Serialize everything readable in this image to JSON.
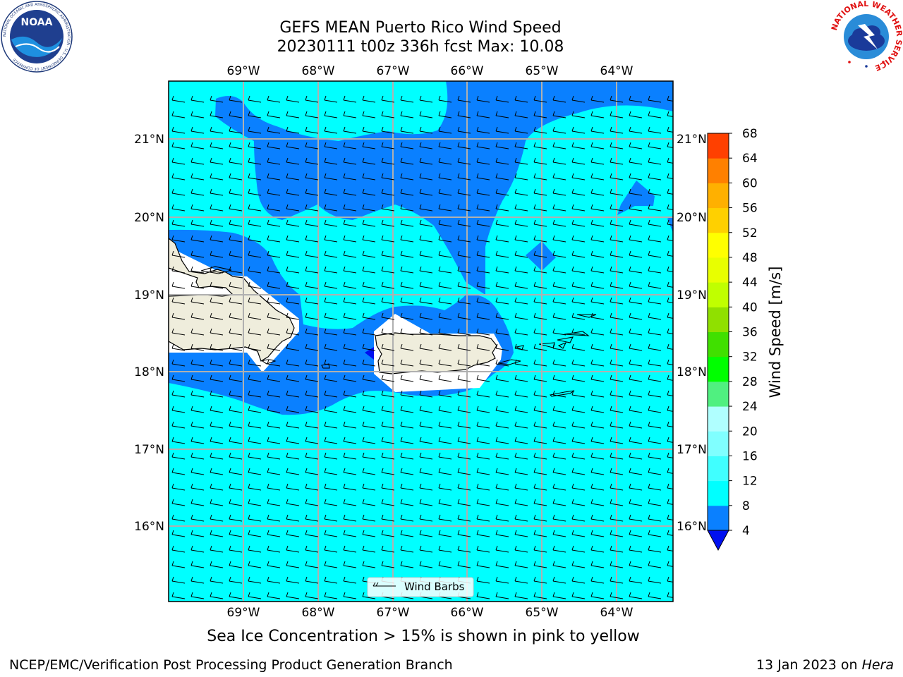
{
  "header": {
    "title_line1": "GEFS MEAN Puerto Rico Wind Speed",
    "title_line2": "20230111 t00z 336h fcst   Max: 10.08"
  },
  "logos": {
    "left": "NOAA",
    "left_ring_text": "NATIONAL OCEANIC AND ATMOSPHERIC ADMINISTRATION · U.S. DEPARTMENT OF COMMERCE",
    "right_ring_text": "NATIONAL WEATHER SERVICE"
  },
  "map": {
    "lon_labels": [
      "69°W",
      "68°W",
      "67°W",
      "66°W",
      "65°W",
      "64°W"
    ],
    "lat_labels": [
      "21°N",
      "20°N",
      "19°N",
      "18°N",
      "17°N",
      "16°N"
    ],
    "legend_label": "Wind Barbs",
    "colors": {
      "land": "#efeddc",
      "cyan": "#00ffff",
      "blue": "#0a80ff",
      "deep_blue": "#0010f0",
      "grid": "#b0b0b0"
    }
  },
  "colorbar": {
    "label": "Wind Speed [m/s]",
    "ticks": [
      "4",
      "8",
      "12",
      "16",
      "20",
      "24",
      "28",
      "32",
      "36",
      "40",
      "44",
      "48",
      "52",
      "56",
      "60",
      "64",
      "68"
    ],
    "colors": [
      "#0a80ff",
      "#00ffff",
      "#40ffff",
      "#80ffff",
      "#b0ffff",
      "#50f080",
      "#00ff00",
      "#40e000",
      "#90e000",
      "#c0ff00",
      "#e8ff00",
      "#ffff00",
      "#ffd000",
      "#ffb000",
      "#ff8000",
      "#ff4000",
      "#ff0000"
    ],
    "under_color": "#0010f0"
  },
  "note": "Sea Ice Concentration > 15% is shown in pink to yellow",
  "footer": {
    "left": "NCEP/EMC/Verification Post Processing Product Generation Branch",
    "date": "13 Jan 2023 on ",
    "machine": "Hera"
  }
}
